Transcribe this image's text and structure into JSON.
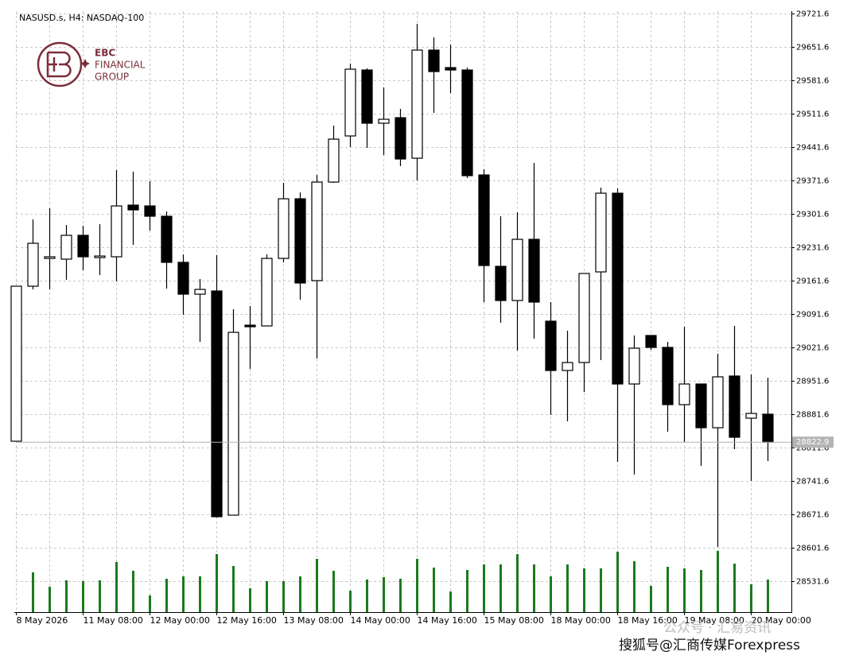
{
  "chart_data": {
    "type": "candlestick",
    "title": "NASUSD.s, H4:  NASDAQ-100",
    "logo": [
      "EBC",
      "FINANCIAL",
      "GROUP"
    ],
    "watermark": "搜狐号@汇商传媒Forexpress",
    "watermark_faint": "公众号 · 汇易资讯",
    "categories": [
      "8 May 2026",
      null,
      null,
      null,
      "11 May 08:00",
      null,
      null,
      null,
      "12 May 00:00",
      null,
      null,
      null,
      "12 May 16:00",
      null,
      null,
      null,
      "13 May 08:00",
      null,
      null,
      null,
      "14 May 00:00",
      null,
      null,
      null,
      "14 May 16:00",
      null,
      null,
      null,
      "15 May 08:00",
      null,
      null,
      null,
      "18 May 00:00",
      null,
      null,
      null,
      "18 May 16:00",
      null,
      null,
      null,
      "19 May 08:00",
      null,
      null,
      null,
      "20 May 00:00",
      null
    ],
    "open": [
      28824.9,
      29149.9,
      29208.2,
      29206.6,
      29256.6,
      29209.9,
      29211.6,
      29319.9,
      29318.2,
      29296.6,
      29199.9,
      29133.2,
      29139.9,
      28669.9,
      29068.2,
      29066.6,
      29208.2,
      29333.2,
      29161.6,
      29368.2,
      29464.9,
      29603.2,
      29491.6,
      29503.2,
      29418.2,
      29644.9,
      29608.2,
      29603.2,
      29383.2,
      29191.6,
      29119.9,
      29248.2,
      29076.6,
      28973.2,
      28989.9,
      29179.9,
      29344.9,
      28944.9,
      29046.6,
      29021.6,
      28901.6,
      28944.9,
      28853.2,
      28961.6,
      28873.2,
      28881.6
    ],
    "high": [
      29149.9,
      29289.9,
      29313.2,
      29278.2,
      29276.6,
      29279.9,
      29393.2,
      29389.9,
      29369.9,
      29306.6,
      29216.6,
      29164.9,
      29214.9,
      29101.6,
      29108.2,
      29216.6,
      29366.6,
      29346.6,
      29383.2,
      29486.6,
      29616.6,
      29606.6,
      29566.6,
      29521.6,
      29699.9,
      29671.6,
      29656.6,
      29608.2,
      29394.9,
      29296.6,
      29304.9,
      29408.2,
      29116.6,
      29056.6,
      29176.6,
      29356.6,
      29354.9,
      29046.6,
      29046.6,
      29033.2,
      29064.9,
      28944.9,
      29008.2,
      29066.6,
      28964.9,
      28958.2
    ],
    "low": [
      28824.9,
      29143.2,
      29143.2,
      29163.2,
      29183.2,
      29173.2,
      29159.9,
      29236.6,
      29266.6,
      29144.9,
      29089.9,
      29033.2,
      28664.9,
      28669.9,
      28976.6,
      29066.6,
      29199.9,
      29121.6,
      28998.2,
      29366.6,
      29441.6,
      29439.9,
      29424.9,
      29401.6,
      29371.6,
      29513.2,
      29554.9,
      29376.6,
      29116.6,
      29073.2,
      29014.9,
      29039.9,
      28879.9,
      28866.6,
      28928.2,
      28994.9,
      28781.6,
      28754.9,
      29016.6,
      28844.9,
      28823.2,
      28773.2,
      28603.2,
      28808.2,
      28741.6,
      28783.2
    ],
    "close": [
      29149.9,
      29239.9,
      29211.6,
      29256.6,
      29211.6,
      29213.2,
      29318.2,
      29309.9,
      29296.6,
      29199.9,
      29133.2,
      29143.2,
      28666.6,
      29053.2,
      29064.9,
      29208.2,
      29333.2,
      29156.6,
      29368.2,
      29458.2,
      29604.9,
      29491.6,
      29499.9,
      29416.6,
      29644.9,
      29599.9,
      29603.2,
      29381.6,
      29193.2,
      29119.9,
      29248.2,
      29116.6,
      28973.2,
      28989.9,
      29176.6,
      29344.9,
      28944.9,
      29019.9,
      29021.6,
      28901.6,
      28944.9,
      28853.2,
      28959.9,
      28833.2,
      28883.2,
      28822.9
    ],
    "volume": [
      null,
      50,
      32,
      40,
      39,
      40,
      63,
      52,
      21,
      42,
      45,
      45,
      73,
      58,
      30,
      39,
      39,
      45,
      67,
      52,
      27,
      41,
      44,
      42,
      67,
      56,
      26,
      53,
      60,
      60,
      73,
      60,
      45,
      60,
      55,
      55,
      76,
      64,
      33,
      57,
      55,
      53,
      77,
      61,
      35,
      41
    ],
    "up_color": "#ffffff",
    "down_color": "#000000",
    "volume_color": "#1c7a1c",
    "current_price": 28822.9,
    "ylim": [
      28466.6,
      29726.6
    ],
    "yticks": [
      29721.6,
      29651.6,
      29581.6,
      29511.6,
      29441.6,
      29371.6,
      29301.6,
      29231.6,
      29161.6,
      29091.6,
      29021.6,
      28951.6,
      28881.6,
      28811.6,
      28741.6,
      28671.6,
      28601.6,
      28531.6
    ],
    "grid": true
  }
}
